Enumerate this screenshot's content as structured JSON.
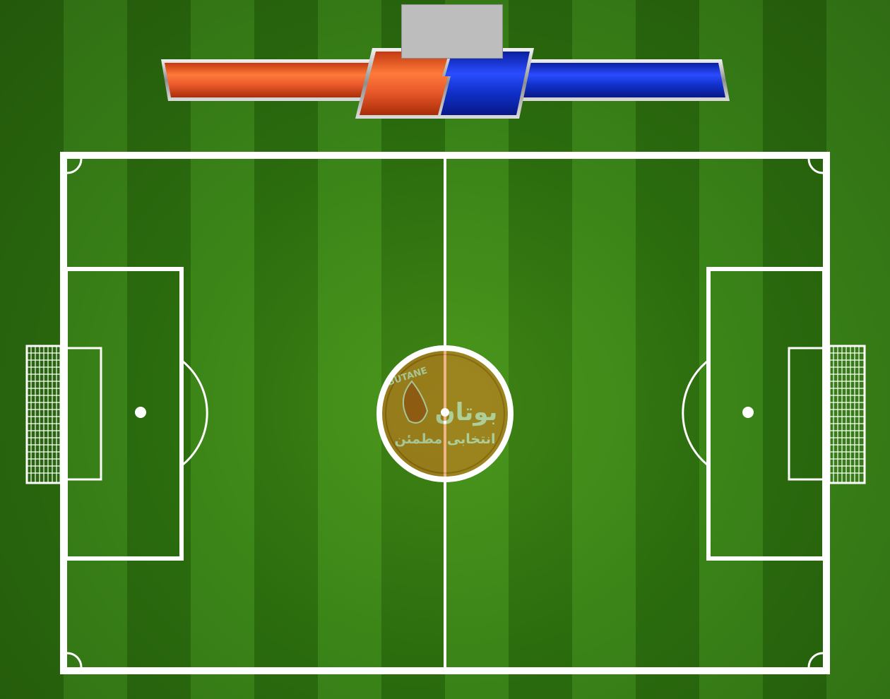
{
  "game": {
    "title": "",
    "timer": "",
    "colors": {
      "home_team": "#e8572a",
      "away_team": "#1030c8",
      "grass_dark": "#2b6c0e",
      "grass_light": "#3a8418",
      "lines": "#ffffff",
      "timer_box": "#bdbdbd"
    }
  },
  "scoreboard": {
    "home": {
      "score": "",
      "color_name": "orange"
    },
    "away": {
      "score": "",
      "color_name": "blue"
    }
  },
  "center_logo": {
    "brand_latin": "BUTANE",
    "brand_persian": "بوتان",
    "slogan": "انتخابی مطمئن",
    "color": "#e07820"
  }
}
